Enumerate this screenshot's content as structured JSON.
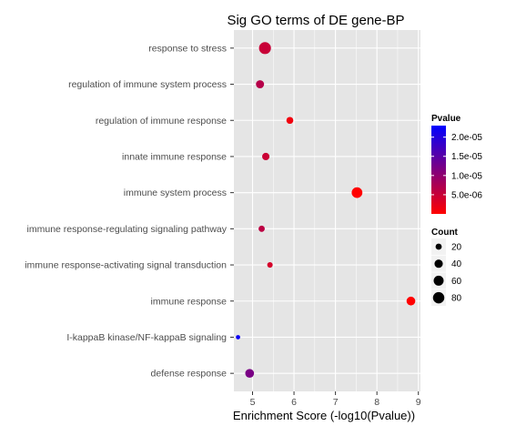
{
  "chart_data": {
    "type": "scatter",
    "title": "Sig GO terms of DE gene-BP",
    "xlabel": "Enrichment Score (-log10(Pvalue))",
    "ylabel": "",
    "xlim": [
      4.55,
      9.05
    ],
    "x_ticks": [
      5,
      6,
      7,
      8,
      9
    ],
    "grid": true,
    "categories": [
      "response to stress",
      "regulation of immune system process",
      "regulation of immune response",
      "innate immune response",
      "immune system process",
      "immune response-regulating signaling pathway",
      "immune response-activating signal transduction",
      "immune response",
      "I-kappaB kinase/NF-kappaB signaling",
      "defense response"
    ],
    "points": [
      {
        "term": "response to stress",
        "x": 5.3,
        "count": 90,
        "pvalue": 5e-06
      },
      {
        "term": "regulation of immune system process",
        "x": 5.18,
        "count": 38,
        "pvalue": 6.6e-06
      },
      {
        "term": "regulation of immune response",
        "x": 5.9,
        "count": 26,
        "pvalue": 1.3e-06
      },
      {
        "term": "innate immune response",
        "x": 5.32,
        "count": 30,
        "pvalue": 4.8e-06
      },
      {
        "term": "immune system process",
        "x": 7.52,
        "count": 70,
        "pvalue": 3e-08
      },
      {
        "term": "immune response-regulating signaling pathway",
        "x": 5.22,
        "count": 20,
        "pvalue": 6e-06
      },
      {
        "term": "immune response-activating signal transduction",
        "x": 5.42,
        "count": 15,
        "pvalue": 3.8e-06
      },
      {
        "term": "immune response",
        "x": 8.82,
        "count": 45,
        "pvalue": 1.5e-09
      },
      {
        "term": "I-kappaB kinase/NF-kappaB signaling",
        "x": 4.65,
        "count": 8,
        "pvalue": 2.2e-05
      },
      {
        "term": "defense response",
        "x": 4.93,
        "count": 45,
        "pvalue": 1.2e-05
      }
    ],
    "legend": {
      "placement": "right",
      "color": {
        "title": "Pvalue",
        "ticks": [
          {
            "label": "2.0e-05",
            "value": 2e-05
          },
          {
            "label": "1.5e-05",
            "value": 1.5e-05
          },
          {
            "label": "1.0e-05",
            "value": 1e-05
          },
          {
            "label": "5.0e-06",
            "value": 5e-06
          }
        ],
        "domain": [
          0,
          2.3e-05
        ],
        "low_color": "#ff0000",
        "high_color": "#0000ff"
      },
      "size": {
        "title": "Count",
        "entries": [
          {
            "label": "20",
            "value": 20
          },
          {
            "label": "40",
            "value": 40
          },
          {
            "label": "60",
            "value": 60
          },
          {
            "label": "80",
            "value": 80
          }
        ]
      }
    },
    "colors": {
      "panel_bg": "#e5e5e5",
      "grid": "#ffffff",
      "axis_text": "#4d4d4d"
    }
  }
}
